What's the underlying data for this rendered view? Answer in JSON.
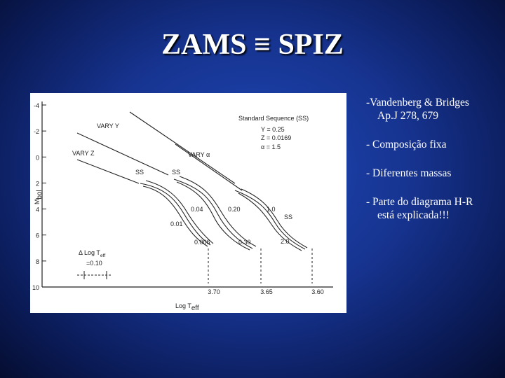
{
  "title": "ZAMS ≡ SPIZ",
  "figure": {
    "y_axis_label": {
      "main": "M",
      "sub": "bol"
    },
    "x_axis_label": {
      "main": "Log T",
      "sub": "eff"
    },
    "y_ticks": [
      "-4",
      "-2",
      "0",
      "2",
      "4",
      "6",
      "8",
      "10"
    ],
    "x_ticks": [
      "3.70",
      "3.65",
      "3.60"
    ],
    "legend": [
      "Standard Sequence (SS)",
      "Y = 0.25",
      "Z = 0.0169",
      "α = 1.5"
    ],
    "curve_labels": [
      "VARY Y",
      "VARY Z",
      "VARY α",
      "SS",
      "SS",
      "SS",
      "0.04",
      "0.20",
      "1.0",
      "0.01",
      "0.006",
      "0.30",
      "2.0"
    ],
    "delta": {
      "main": "Δ Log T",
      "sub": "eff",
      "value": "=0.10"
    }
  },
  "bullets": [
    {
      "lines": [
        "-Vandenberg & Bridges",
        "Ap.J 278, 679"
      ]
    },
    {
      "lines": [
        "- Composição fixa"
      ]
    },
    {
      "lines": [
        "- Diferentes massas"
      ]
    },
    {
      "lines": [
        "- Parte do diagrama H-R",
        "está explicada!!!"
      ]
    }
  ]
}
